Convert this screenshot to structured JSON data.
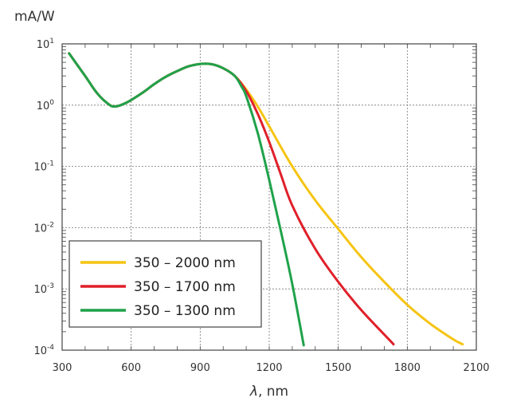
{
  "chart_data": {
    "type": "line",
    "ylabel": "mA/W",
    "xlabel_symbol": "λ",
    "xlabel_unit": ", nm",
    "xlim": [
      300,
      2100
    ],
    "ylim": [
      0.0001,
      10
    ],
    "yscale": "log",
    "grid": true,
    "x_ticks": [
      300,
      600,
      900,
      1200,
      1500,
      1800,
      2100
    ],
    "y_ticks": [
      {
        "base": "10",
        "exp": "1",
        "value": 10
      },
      {
        "base": "10",
        "exp": "0",
        "value": 1
      },
      {
        "base": "10",
        "exp": "-1",
        "value": 0.1
      },
      {
        "base": "10",
        "exp": "-2",
        "value": 0.01
      },
      {
        "base": "10",
        "exp": "-3",
        "value": 0.001
      },
      {
        "base": "10",
        "exp": "-4",
        "value": 0.0001
      }
    ],
    "legend_position": "bottom-left",
    "series": [
      {
        "name": "350 – 2000 nm",
        "color": "#f6c412",
        "points": [
          [
            330,
            7.0
          ],
          [
            400,
            3.0
          ],
          [
            450,
            1.6
          ],
          [
            500,
            1.05
          ],
          [
            530,
            0.95
          ],
          [
            580,
            1.1
          ],
          [
            650,
            1.6
          ],
          [
            700,
            2.2
          ],
          [
            750,
            2.9
          ],
          [
            800,
            3.6
          ],
          [
            850,
            4.3
          ],
          [
            900,
            4.7
          ],
          [
            950,
            4.65
          ],
          [
            1000,
            4.0
          ],
          [
            1050,
            3.0
          ],
          [
            1100,
            1.8
          ],
          [
            1150,
            0.95
          ],
          [
            1200,
            0.45
          ],
          [
            1300,
            0.1
          ],
          [
            1400,
            0.028
          ],
          [
            1500,
            0.0095
          ],
          [
            1600,
            0.0033
          ],
          [
            1700,
            0.0013
          ],
          [
            1800,
            0.00055
          ],
          [
            1900,
            0.00027
          ],
          [
            2000,
            0.00015
          ],
          [
            2040,
            0.000125
          ]
        ]
      },
      {
        "name": "350 – 1700 nm",
        "color": "#e0202a",
        "points": [
          [
            330,
            7.0
          ],
          [
            400,
            3.0
          ],
          [
            450,
            1.6
          ],
          [
            500,
            1.05
          ],
          [
            530,
            0.95
          ],
          [
            580,
            1.1
          ],
          [
            650,
            1.6
          ],
          [
            700,
            2.2
          ],
          [
            750,
            2.9
          ],
          [
            800,
            3.6
          ],
          [
            850,
            4.3
          ],
          [
            900,
            4.7
          ],
          [
            950,
            4.65
          ],
          [
            1000,
            4.0
          ],
          [
            1050,
            3.0
          ],
          [
            1100,
            1.7
          ],
          [
            1150,
            0.72
          ],
          [
            1200,
            0.25
          ],
          [
            1250,
            0.075
          ],
          [
            1300,
            0.023
          ],
          [
            1400,
            0.0045
          ],
          [
            1500,
            0.0013
          ],
          [
            1600,
            0.00045
          ],
          [
            1700,
            0.00018
          ],
          [
            1740,
            0.000125
          ]
        ]
      },
      {
        "name": "350 – 1300 nm",
        "color": "#1fa24a",
        "points": [
          [
            330,
            7.0
          ],
          [
            400,
            3.0
          ],
          [
            450,
            1.6
          ],
          [
            500,
            1.05
          ],
          [
            530,
            0.95
          ],
          [
            580,
            1.1
          ],
          [
            650,
            1.6
          ],
          [
            700,
            2.2
          ],
          [
            750,
            2.9
          ],
          [
            800,
            3.6
          ],
          [
            850,
            4.3
          ],
          [
            900,
            4.7
          ],
          [
            950,
            4.65
          ],
          [
            1000,
            4.0
          ],
          [
            1050,
            3.0
          ],
          [
            1080,
            2.0
          ],
          [
            1100,
            1.4
          ],
          [
            1150,
            0.35
          ],
          [
            1200,
            0.06
          ],
          [
            1250,
            0.009
          ],
          [
            1300,
            0.0012
          ],
          [
            1350,
            0.00012
          ]
        ]
      }
    ]
  }
}
